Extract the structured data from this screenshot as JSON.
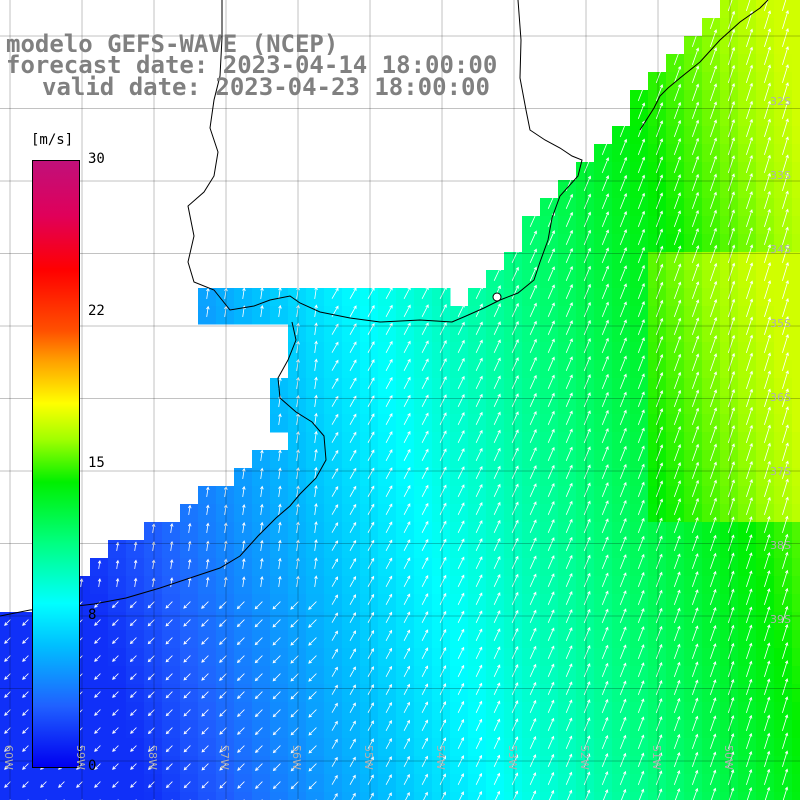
{
  "title": {
    "model": "modelo GEFS-WAVE (NCEP)",
    "forecast": "forecast date: 2023-04-14 18:00:00",
    "valid": "valid date: 2023-04-23 18:00:00"
  },
  "colorbar": {
    "units": "[m/s]",
    "ticks": [
      "30",
      "22",
      "15",
      "8",
      "0"
    ],
    "range": [
      0,
      30
    ],
    "colors": {
      "low": "#0000f0",
      "cyan": "#00ffff",
      "green": "#00f000",
      "yellow": "#ffff00",
      "red": "#ff0000",
      "high": "#c0107a"
    }
  },
  "axes": {
    "longitude_labels": [
      "60W",
      "59W",
      "58W",
      "57W",
      "56W",
      "55W",
      "54W",
      "53W",
      "52W",
      "51W",
      "50W"
    ],
    "latitude_labels": [
      "32S",
      "33S",
      "34S",
      "35S",
      "36S",
      "37S",
      "38S",
      "39S"
    ]
  },
  "colors": {
    "land": "#ffffff",
    "coastline": "#000000",
    "grid": "#000000",
    "arrows": "#ffffff",
    "title": "#808080"
  }
}
